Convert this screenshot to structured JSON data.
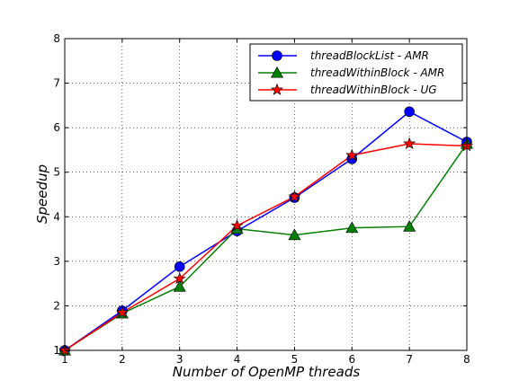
{
  "chart_data": {
    "type": "line",
    "xlabel": "Number of OpenMP threads",
    "ylabel": "Speedup",
    "xlim": [
      1,
      8
    ],
    "ylim": [
      1,
      8
    ],
    "xticks": [
      1,
      2,
      3,
      4,
      5,
      6,
      7,
      8
    ],
    "yticks": [
      1,
      2,
      3,
      4,
      5,
      6,
      7,
      8
    ],
    "grid": true,
    "legend_position": "top-right",
    "x": [
      1,
      2,
      3,
      4,
      5,
      6,
      7,
      8
    ],
    "series": [
      {
        "name": "threadBlockList - AMR",
        "color": "#0000ff",
        "marker": "circle",
        "values": [
          1.0,
          1.89,
          2.88,
          3.68,
          4.43,
          5.3,
          6.36,
          5.68
        ]
      },
      {
        "name": "threadWithinBlock - AMR",
        "color": "#008000",
        "marker": "triangle",
        "values": [
          1.0,
          1.83,
          2.43,
          3.73,
          3.59,
          3.75,
          3.78,
          5.64
        ]
      },
      {
        "name": "threadWithinBlock - UG",
        "color": "#ff0000",
        "marker": "star",
        "values": [
          1.0,
          1.85,
          2.61,
          3.8,
          4.45,
          5.38,
          5.64,
          5.59
        ]
      }
    ]
  }
}
